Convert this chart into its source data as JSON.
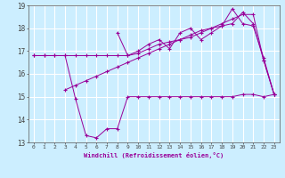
{
  "xlabel": "Windchill (Refroidissement éolien,°C)",
  "background_color": "#cceeff",
  "grid_color": "#ffffff",
  "line_color": "#990099",
  "xlim": [
    -0.5,
    23.5
  ],
  "ylim": [
    13,
    19
  ],
  "yticks": [
    13,
    14,
    15,
    16,
    17,
    18,
    19
  ],
  "xticks": [
    0,
    1,
    2,
    3,
    4,
    5,
    6,
    7,
    8,
    9,
    10,
    11,
    12,
    13,
    14,
    15,
    16,
    17,
    18,
    19,
    20,
    21,
    22,
    23
  ],
  "series": [
    {
      "x": [
        0,
        1,
        2,
        3,
        4,
        5,
        6,
        7,
        8,
        9,
        10,
        11,
        12,
        13,
        14,
        15,
        16,
        17,
        18,
        19,
        20,
        21,
        22,
        23
      ],
      "y": [
        16.8,
        16.8,
        16.8,
        16.8,
        14.9,
        13.3,
        13.2,
        13.6,
        13.6,
        15.0,
        15.0,
        15.0,
        15.0,
        15.0,
        15.0,
        15.0,
        15.0,
        15.0,
        15.0,
        15.0,
        15.1,
        15.1,
        15.0,
        15.1
      ]
    },
    {
      "x": [
        3,
        4,
        5,
        6,
        7,
        8,
        9,
        10,
        11,
        12,
        13,
        14,
        15,
        16,
        17,
        18,
        19,
        20,
        21,
        22,
        23
      ],
      "y": [
        15.3,
        15.5,
        15.7,
        15.9,
        16.1,
        16.3,
        16.5,
        16.7,
        16.9,
        17.1,
        17.3,
        17.5,
        17.7,
        17.9,
        18.0,
        18.2,
        18.4,
        18.6,
        18.6,
        16.6,
        15.1
      ]
    },
    {
      "x": [
        0,
        1,
        2,
        3,
        4,
        5,
        6,
        7,
        8,
        9,
        10,
        11,
        12,
        13,
        14,
        15,
        16,
        17,
        18,
        19,
        20,
        21,
        22,
        23
      ],
      "y": [
        16.8,
        16.8,
        16.8,
        16.8,
        16.8,
        16.8,
        16.8,
        16.8,
        16.8,
        16.8,
        16.9,
        17.1,
        17.3,
        17.4,
        17.5,
        17.6,
        17.8,
        18.0,
        18.1,
        18.2,
        18.7,
        18.2,
        16.6,
        15.1
      ]
    },
    {
      "x": [
        8,
        9,
        10,
        11,
        12,
        13,
        14,
        15,
        16,
        17,
        18,
        19,
        20,
        21,
        22,
        23
      ],
      "y": [
        17.8,
        16.8,
        17.0,
        17.3,
        17.5,
        17.1,
        17.8,
        18.0,
        17.5,
        17.8,
        18.1,
        18.85,
        18.2,
        18.1,
        16.7,
        15.1
      ]
    }
  ]
}
